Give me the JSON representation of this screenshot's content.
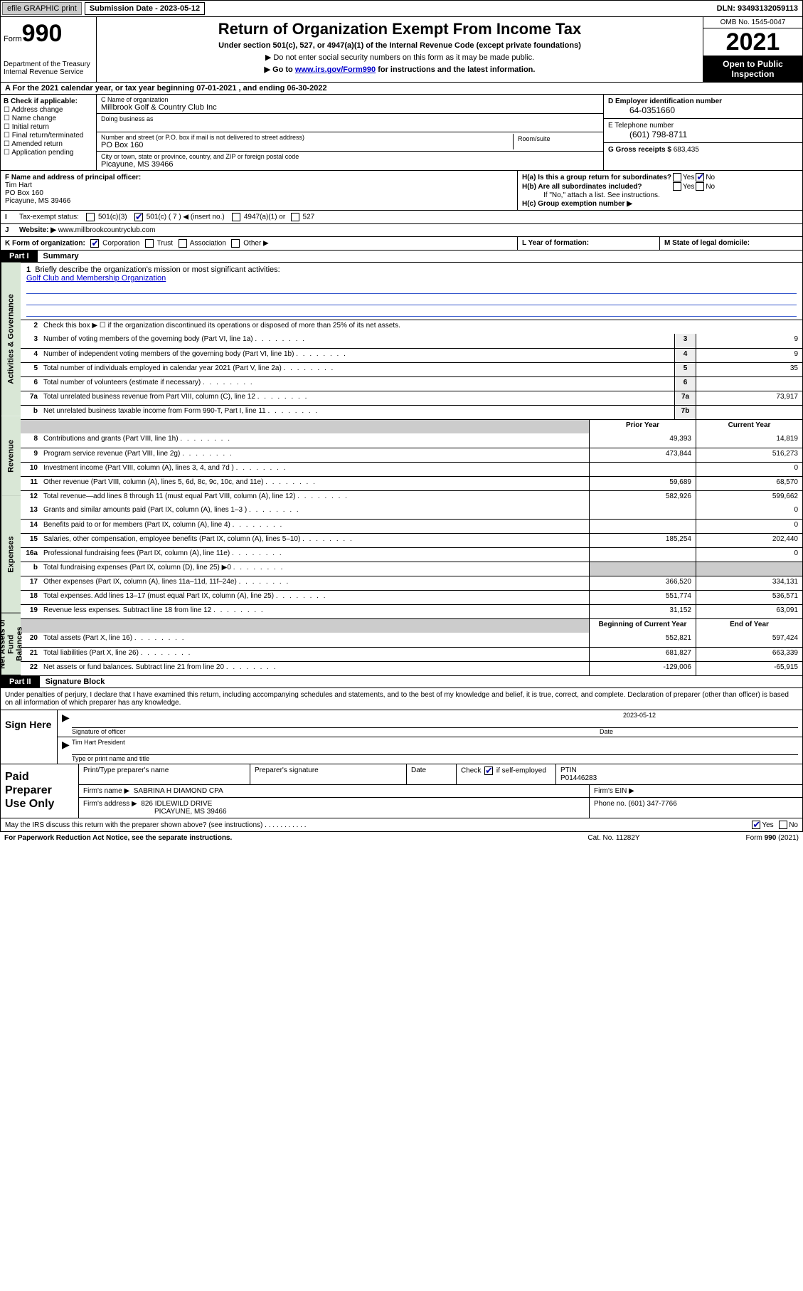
{
  "topbar": {
    "efile": "efile GRAPHIC print",
    "submission_label": "Submission Date - 2023-05-12",
    "dln": "DLN: 93493132059113"
  },
  "header": {
    "form_prefix": "Form",
    "form_number": "990",
    "title": "Return of Organization Exempt From Income Tax",
    "sub1": "Under section 501(c), 527, or 4947(a)(1) of the Internal Revenue Code (except private foundations)",
    "sub2": "▶ Do not enter social security numbers on this form as it may be made public.",
    "sub3_pre": "▶ Go to ",
    "sub3_link": "www.irs.gov/Form990",
    "sub3_post": " for instructions and the latest information.",
    "dept": "Department of the Treasury\nInternal Revenue Service",
    "omb": "OMB No. 1545-0047",
    "year": "2021",
    "open_pub": "Open to Public Inspection"
  },
  "rowA": "A For the 2021 calendar year, or tax year beginning 07-01-2021   , and ending 06-30-2022",
  "colB": {
    "header": "B Check if applicable:",
    "items": [
      "Address change",
      "Name change",
      "Initial return",
      "Final return/terminated",
      "Amended return",
      "Application pending"
    ]
  },
  "colC": {
    "name_label": "C Name of organization",
    "name": "Millbrook Golf & Country Club Inc",
    "dba_label": "Doing business as",
    "dba": "",
    "addr_label": "Number and street (or P.O. box if mail is not delivered to street address)",
    "addr": "PO Box 160",
    "room_label": "Room/suite",
    "city_label": "City or town, state or province, country, and ZIP or foreign postal code",
    "city": "Picayune, MS  39466"
  },
  "colD": {
    "ein_label": "D Employer identification number",
    "ein": "64-0351660",
    "phone_label": "E Telephone number",
    "phone": "(601) 798-8711",
    "gross_label": "G Gross receipts $",
    "gross": "683,435"
  },
  "colF": {
    "label": "F  Name and address of principal officer:",
    "name": "Tim Hart",
    "addr1": "PO Box 160",
    "addr2": "Picayune, MS  39466"
  },
  "colH": {
    "ha_label": "H(a)  Is this a group return for subordinates?",
    "hb_label": "H(b)  Are all subordinates included?",
    "hb_note": "If \"No,\" attach a list. See instructions.",
    "hc_label": "H(c)  Group exemption number ▶",
    "yes": "Yes",
    "no": "No"
  },
  "rowI": {
    "label": "I",
    "text": "Tax-exempt status:",
    "opt1": "501(c)(3)",
    "opt2_pre": "501(c) ( 7 ) ◀ (insert no.)",
    "opt3": "4947(a)(1) or",
    "opt4": "527"
  },
  "rowJ": {
    "label": "J",
    "text": "Website: ▶",
    "url": "www.millbrookcountryclub.com"
  },
  "rowK": {
    "text": "K Form of organization:",
    "opts": [
      "Corporation",
      "Trust",
      "Association",
      "Other ▶"
    ],
    "L": "L Year of formation:",
    "M": "M State of legal domicile:"
  },
  "part1": {
    "tab": "Part I",
    "title": "Summary"
  },
  "sec_governance": "Activities & Governance",
  "sec_revenue": "Revenue",
  "sec_expenses": "Expenses",
  "sec_netassets": "Net Assets or Fund Balances",
  "line1": {
    "num": "1",
    "text": "Briefly describe the organization's mission or most significant activities:",
    "mission": "Golf Club and Membership Organization"
  },
  "line2": {
    "num": "2",
    "text": "Check this box ▶ ☐  if the organization discontinued its operations or disposed of more than 25% of its net assets."
  },
  "lines_gov": [
    {
      "num": "3",
      "text": "Number of voting members of the governing body (Part VI, line 1a)",
      "box": "3",
      "val": "9"
    },
    {
      "num": "4",
      "text": "Number of independent voting members of the governing body (Part VI, line 1b)",
      "box": "4",
      "val": "9"
    },
    {
      "num": "5",
      "text": "Total number of individuals employed in calendar year 2021 (Part V, line 2a)",
      "box": "5",
      "val": "35"
    },
    {
      "num": "6",
      "text": "Total number of volunteers (estimate if necessary)",
      "box": "6",
      "val": ""
    },
    {
      "num": "7a",
      "text": "Total unrelated business revenue from Part VIII, column (C), line 12",
      "box": "7a",
      "val": "73,917"
    },
    {
      "num": "b",
      "text": "Net unrelated business taxable income from Form 990-T, Part I, line 11",
      "box": "7b",
      "val": ""
    }
  ],
  "colhdr_prior": "Prior Year",
  "colhdr_current": "Current Year",
  "lines_rev": [
    {
      "num": "8",
      "text": "Contributions and grants (Part VIII, line 1h)",
      "py": "49,393",
      "cy": "14,819"
    },
    {
      "num": "9",
      "text": "Program service revenue (Part VIII, line 2g)",
      "py": "473,844",
      "cy": "516,273"
    },
    {
      "num": "10",
      "text": "Investment income (Part VIII, column (A), lines 3, 4, and 7d )",
      "py": "",
      "cy": "0"
    },
    {
      "num": "11",
      "text": "Other revenue (Part VIII, column (A), lines 5, 6d, 8c, 9c, 10c, and 11e)",
      "py": "59,689",
      "cy": "68,570"
    },
    {
      "num": "12",
      "text": "Total revenue—add lines 8 through 11 (must equal Part VIII, column (A), line 12)",
      "py": "582,926",
      "cy": "599,662"
    }
  ],
  "lines_exp": [
    {
      "num": "13",
      "text": "Grants and similar amounts paid (Part IX, column (A), lines 1–3 )",
      "py": "",
      "cy": "0"
    },
    {
      "num": "14",
      "text": "Benefits paid to or for members (Part IX, column (A), line 4)",
      "py": "",
      "cy": "0"
    },
    {
      "num": "15",
      "text": "Salaries, other compensation, employee benefits (Part IX, column (A), lines 5–10)",
      "py": "185,254",
      "cy": "202,440"
    },
    {
      "num": "16a",
      "text": "Professional fundraising fees (Part IX, column (A), line 11e)",
      "py": "",
      "cy": "0"
    },
    {
      "num": "b",
      "text": "Total fundraising expenses (Part IX, column (D), line 25) ▶0",
      "py": "",
      "cy": "",
      "shade": true
    },
    {
      "num": "17",
      "text": "Other expenses (Part IX, column (A), lines 11a–11d, 11f–24e)",
      "py": "366,520",
      "cy": "334,131"
    },
    {
      "num": "18",
      "text": "Total expenses. Add lines 13–17 (must equal Part IX, column (A), line 25)",
      "py": "551,774",
      "cy": "536,571"
    },
    {
      "num": "19",
      "text": "Revenue less expenses. Subtract line 18 from line 12",
      "py": "31,152",
      "cy": "63,091"
    }
  ],
  "colhdr_boy": "Beginning of Current Year",
  "colhdr_eoy": "End of Year",
  "lines_net": [
    {
      "num": "20",
      "text": "Total assets (Part X, line 16)",
      "py": "552,821",
      "cy": "597,424"
    },
    {
      "num": "21",
      "text": "Total liabilities (Part X, line 26)",
      "py": "681,827",
      "cy": "663,339"
    },
    {
      "num": "22",
      "text": "Net assets or fund balances. Subtract line 21 from line 20",
      "py": "-129,006",
      "cy": "-65,915"
    }
  ],
  "part2": {
    "tab": "Part II",
    "title": "Signature Block"
  },
  "sig": {
    "intro": "Under penalties of perjury, I declare that I have examined this return, including accompanying schedules and statements, and to the best of my knowledge and belief, it is true, correct, and complete. Declaration of preparer (other than officer) is based on all information of which preparer has any knowledge.",
    "sign_here": "Sign Here",
    "sig_officer": "Signature of officer",
    "date_label": "Date",
    "date": "2023-05-12",
    "name_title": "Tim Hart  President",
    "name_label": "Type or print name and title"
  },
  "prep": {
    "title": "Paid Preparer Use Only",
    "h1": "Print/Type preparer's name",
    "h2": "Preparer's signature",
    "h3": "Date",
    "h4a": "Check ",
    "h4b": " if self-employed",
    "h5": "PTIN",
    "ptin": "P01446283",
    "firm_name_label": "Firm's name      ▶",
    "firm_name": "SABRINA H DIAMOND CPA",
    "firm_ein_label": "Firm's EIN ▶",
    "firm_addr_label": "Firm's address ▶",
    "firm_addr1": "826 IDLEWILD DRIVE",
    "firm_addr2": "PICAYUNE, MS  39466",
    "phone_label": "Phone no.",
    "phone": "(601) 347-7766"
  },
  "irs_discuss": {
    "text": "May the IRS discuss this return with the preparer shown above? (see instructions)",
    "yes": "Yes",
    "no": "No"
  },
  "footer": {
    "left": "For Paperwork Reduction Act Notice, see the separate instructions.",
    "mid": "Cat. No. 11282Y",
    "right_pre": "Form ",
    "right_form": "990",
    "right_post": " (2021)"
  }
}
